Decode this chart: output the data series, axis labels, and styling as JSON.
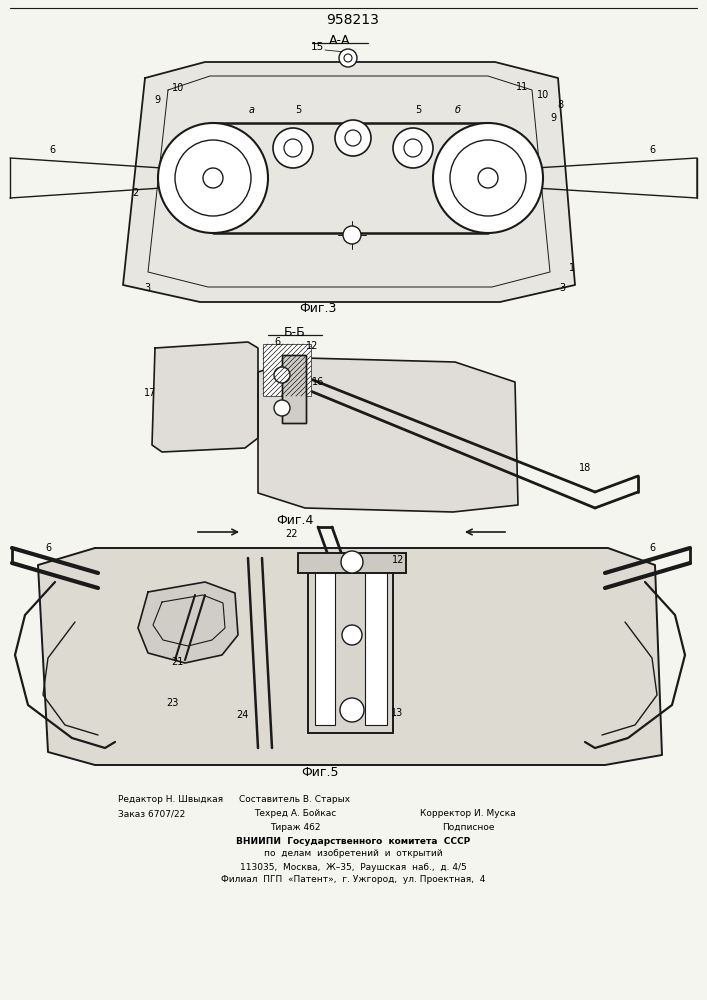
{
  "patent_number": "958213",
  "background_color": "#f5f5f0",
  "drawing_color": "#2a2a2a",
  "line_color": "#1a1a1a",
  "fig1_label": "А-А",
  "fig2_label": "Б-Б",
  "fig3_label": "Фиг.3",
  "fig4_label": "Фиг.4",
  "fig5_label": "Фиг.5"
}
